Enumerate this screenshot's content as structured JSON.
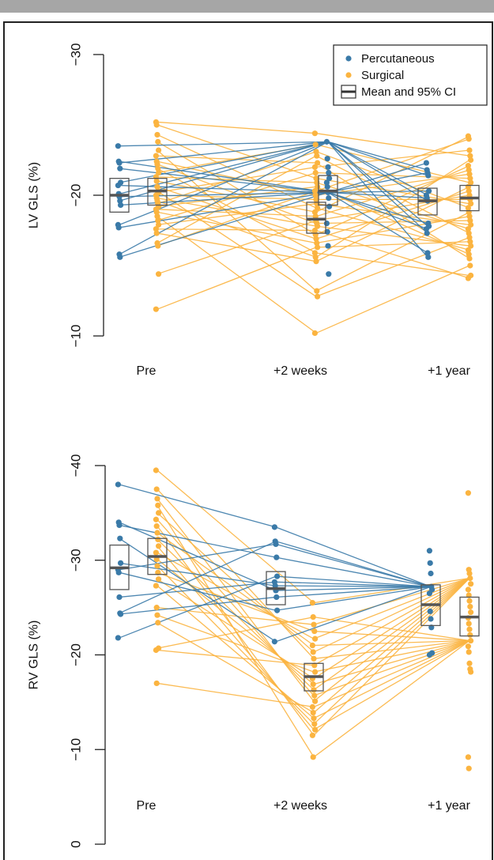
{
  "colors": {
    "percutaneous": "#3a7aa8",
    "surgical": "#fbb440",
    "ci_box": "#555555",
    "mean_bar": "#555555"
  },
  "legend": {
    "items": [
      {
        "label": "Percutaneous",
        "kind": "dot",
        "color": "#3a7aa8"
      },
      {
        "label": "Surgical",
        "kind": "dot",
        "color": "#fbb440"
      },
      {
        "label": "Mean and 95% CI",
        "kind": "box"
      }
    ]
  },
  "chart_data": [
    {
      "type": "line",
      "panel": "top",
      "ylabel": "LV GLS (%)",
      "ylim": [
        -30,
        -10
      ],
      "y_reversed": true,
      "yticks": [
        -30,
        -20,
        -10
      ],
      "ytick_labels": [
        "−30",
        "−20",
        "−10"
      ],
      "categories": [
        "Pre",
        "+2 weeks",
        "+1 year"
      ],
      "series": [
        {
          "name": "Percutaneous",
          "points_by_time": [
            [
              -23.5,
              -22.4,
              -22.3,
              -21.9,
              -20.9,
              -20.7,
              -20.1,
              -19.9,
              -19.6,
              -19.3,
              -17.9,
              -17.7,
              -15.8,
              -15.6
            ],
            [
              -23.8,
              -22.6,
              -22.0,
              -21.6,
              -21.2,
              -20.9,
              -20.6,
              -20.2,
              -19.8,
              -19.2,
              -18.0,
              -17.4,
              -16.4,
              -14.4
            ],
            [
              -22.3,
              -21.8,
              -21.6,
              -21.4,
              -20.3,
              -20.0,
              -19.8,
              -19.6,
              -18.0,
              -17.8,
              -17.6,
              -17.3,
              -15.9,
              -15.6
            ]
          ]
        },
        {
          "name": "Surgical",
          "points_by_time": [
            [
              -25.2,
              -25.0,
              -24.3,
              -23.8,
              -23.2,
              -22.8,
              -22.4,
              -22.2,
              -21.9,
              -21.6,
              -21.3,
              -21.0,
              -20.6,
              -20.3,
              -20.2,
              -20.0,
              -19.8,
              -19.6,
              -19.4,
              -19.2,
              -19.0,
              -18.8,
              -18.5,
              -18.2,
              -17.9,
              -17.6,
              -17.3,
              -16.6,
              -16.4,
              -14.4,
              -11.9
            ],
            [
              -24.4,
              -23.6,
              -23.1,
              -22.8,
              -22.3,
              -22.0,
              -21.6,
              -21.2,
              -20.9,
              -20.6,
              -20.3,
              -20.0,
              -19.7,
              -19.4,
              -19.1,
              -18.8,
              -18.5,
              -18.2,
              -18.0,
              -17.8,
              -17.5,
              -17.2,
              -16.9,
              -16.6,
              -16.3,
              -15.9,
              -15.6,
              -15.3,
              -13.2,
              -12.8,
              -10.2
            ],
            [
              -24.2,
              -24.0,
              -23.2,
              -22.8,
              -22.5,
              -22.1,
              -21.8,
              -21.5,
              -21.2,
              -20.9,
              -20.6,
              -20.3,
              -20.0,
              -19.7,
              -19.4,
              -19.1,
              -18.8,
              -18.5,
              -18.2,
              -17.9,
              -17.6,
              -17.3,
              -17.0,
              -16.7,
              -16.4,
              -16.1,
              -15.8,
              -15.5,
              -15.0,
              -14.3,
              -14.1
            ]
          ]
        }
      ],
      "mean_ci": [
        {
          "group": "Percutaneous",
          "time": "Pre",
          "mean": -20.0,
          "ci": [
            -21.2,
            -18.8
          ]
        },
        {
          "group": "Surgical",
          "time": "Pre",
          "mean": -20.3,
          "ci": [
            -21.2,
            -19.3
          ]
        },
        {
          "group": "Percutaneous",
          "time": "+2 weeks",
          "mean": -20.3,
          "ci": [
            -21.4,
            -19.3
          ]
        },
        {
          "group": "Surgical",
          "time": "+2 weeks",
          "mean": -18.3,
          "ci": [
            -19.5,
            -17.3
          ]
        },
        {
          "group": "Percutaneous",
          "time": "+1 year",
          "mean": -19.6,
          "ci": [
            -20.5,
            -18.6
          ]
        },
        {
          "group": "Surgical",
          "time": "+1 year",
          "mean": -19.8,
          "ci": [
            -20.7,
            -18.9
          ]
        }
      ]
    },
    {
      "type": "line",
      "panel": "bottom",
      "ylabel": "RV GLS (%)",
      "ylim": [
        -40,
        0
      ],
      "y_reversed": true,
      "yticks": [
        -40,
        -30,
        -20,
        -10,
        0
      ],
      "ytick_labels": [
        "−40",
        "−30",
        "−20",
        "−10",
        "0"
      ],
      "categories": [
        "Pre",
        "+2 weeks",
        "+1 year"
      ],
      "series": [
        {
          "name": "Percutaneous",
          "points_by_time": [
            [
              -38.0,
              -34.0,
              -33.7,
              -32.3,
              -29.7,
              -29.0,
              -28.7,
              -26.1,
              -24.4,
              -24.3,
              -21.8
            ],
            [
              -33.5,
              -32.0,
              -31.7,
              -30.3,
              -28.3,
              -27.7,
              -27.3,
              -26.8,
              -26.1,
              -24.7,
              -21.4
            ],
            [
              -31.0,
              -29.7,
              -28.6,
              -27.2,
              -26.9,
              -26.5,
              -24.6,
              -23.8,
              -22.9,
              -20.2,
              -20.0
            ]
          ]
        },
        {
          "name": "Surgical",
          "points_by_time": [
            [
              -39.5,
              -37.5,
              -36.5,
              -35.8,
              -35.0,
              -34.3,
              -33.6,
              -32.9,
              -32.2,
              -31.5,
              -30.8,
              -30.1,
              -29.4,
              -28.7,
              -28.0,
              -27.3,
              -25.0,
              -24.2,
              -23.4,
              -20.7,
              -20.5,
              -17.0
            ],
            [
              -25.5,
              -24.0,
              -23.2,
              -22.5,
              -21.7,
              -21.0,
              -20.3,
              -19.6,
              -18.9,
              -18.2,
              -17.5,
              -16.9,
              -16.3,
              -15.7,
              -15.1,
              -14.5,
              -13.9,
              -13.3,
              -12.7,
              -12.1,
              -11.5,
              -9.2
            ],
            [
              -37.1,
              -29.0,
              -28.6,
              -28.1,
              -27.5,
              -26.9,
              -26.3,
              -25.7,
              -25.1,
              -24.5,
              -23.9,
              -23.3,
              -22.7,
              -22.1,
              -21.5,
              -20.9,
              -20.3,
              -19.1,
              -18.5,
              -18.2,
              -9.2,
              -8.0
            ]
          ]
        }
      ],
      "mean_ci": [
        {
          "group": "Percutaneous",
          "time": "Pre",
          "mean": -29.2,
          "ci": [
            -31.6,
            -26.9
          ]
        },
        {
          "group": "Surgical",
          "time": "Pre",
          "mean": -30.4,
          "ci": [
            -32.3,
            -28.5
          ]
        },
        {
          "group": "Percutaneous",
          "time": "+2 weeks",
          "mean": -27.0,
          "ci": [
            -28.8,
            -25.3
          ]
        },
        {
          "group": "Surgical",
          "time": "+2 weeks",
          "mean": -17.7,
          "ci": [
            -19.1,
            -16.2
          ]
        },
        {
          "group": "Percutaneous",
          "time": "+1 year",
          "mean": -25.3,
          "ci": [
            -27.4,
            -23.1
          ]
        },
        {
          "group": "Surgical",
          "time": "+1 year",
          "mean": -24.0,
          "ci": [
            -26.1,
            -22.0
          ]
        }
      ]
    }
  ]
}
